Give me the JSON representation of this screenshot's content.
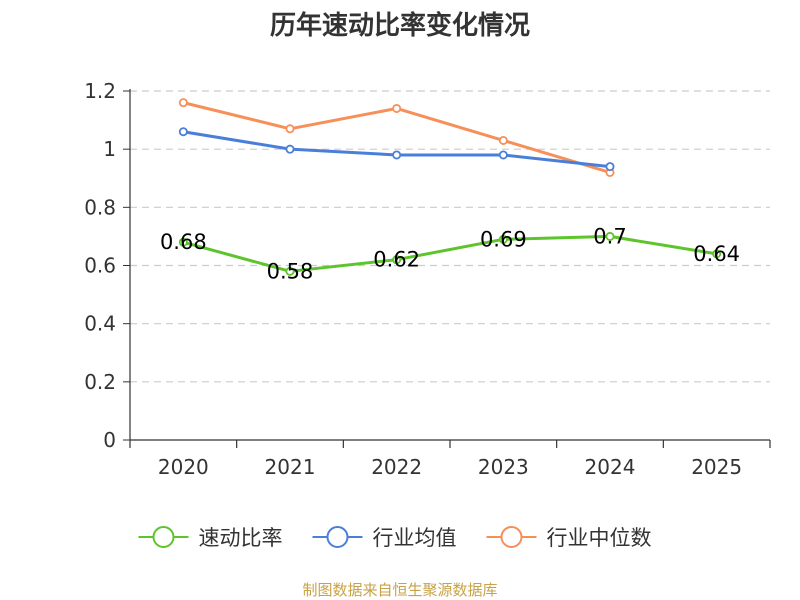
{
  "chart_data": {
    "type": "line",
    "title": "历年速动比率变化情况",
    "categories": [
      "2020",
      "2021",
      "2022",
      "2023",
      "2024",
      "2025"
    ],
    "y_ticks": [
      "0",
      "0.2",
      "0.4",
      "0.6",
      "0.8",
      "1",
      "1.2"
    ],
    "ylim": [
      0,
      1.2
    ],
    "grid": true,
    "legend_position": "bottom",
    "series": [
      {
        "name": "速动比率",
        "color": "#5dc42b",
        "values": [
          0.68,
          0.58,
          0.62,
          0.69,
          0.7,
          0.64
        ],
        "labels": [
          "0.68",
          "0.58",
          "0.62",
          "0.69",
          "0.7",
          "0.64"
        ]
      },
      {
        "name": "行业均值",
        "color": "#4a7fd9",
        "values": [
          1.06,
          1.0,
          0.98,
          0.98,
          0.94,
          null
        ],
        "labels": []
      },
      {
        "name": "行业中位数",
        "color": "#f78f58",
        "values": [
          1.16,
          1.07,
          1.14,
          1.03,
          0.92,
          null
        ],
        "labels": []
      }
    ],
    "source": "制图数据来自恒生聚源数据库"
  }
}
